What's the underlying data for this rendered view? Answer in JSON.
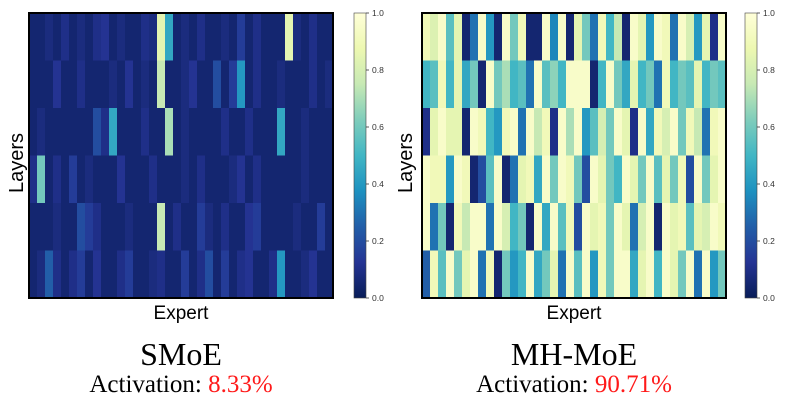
{
  "colorscale": {
    "name": "YlGnBu",
    "stops": [
      "#081d58",
      "#253494",
      "#225ea8",
      "#1d91c0",
      "#41b6c4",
      "#7fcdbb",
      "#c7e9b4",
      "#edf8b1",
      "#ffffd9"
    ]
  },
  "chart_data": [
    {
      "type": "heatmap",
      "title": "SMoE",
      "xlabel": "Expert",
      "ylabel": "Layers",
      "colorbar": {
        "range": [
          0.0,
          1.0
        ],
        "ticks": [
          "0.0",
          "0.2",
          "0.4",
          "0.6",
          "0.8",
          "1.0"
        ]
      },
      "summary": {
        "label": "Activation:",
        "value": "8.33%"
      },
      "values": [
        [
          0.05,
          0.05,
          0.08,
          0.05,
          0.1,
          0.05,
          0.08,
          0.05,
          0.1,
          0.12,
          0.05,
          0.08,
          0.05,
          0.05,
          0.1,
          0.08,
          0.85,
          0.45,
          0.05,
          0.08,
          0.05,
          0.1,
          0.05,
          0.05,
          0.08,
          0.05,
          0.15,
          0.05,
          0.1,
          0.05,
          0.05,
          0.05,
          0.85,
          0.08,
          0.05,
          0.1,
          0.05,
          0.05
        ],
        [
          0.05,
          0.05,
          0.05,
          0.12,
          0.05,
          0.05,
          0.1,
          0.05,
          0.05,
          0.05,
          0.08,
          0.05,
          0.12,
          0.05,
          0.08,
          0.05,
          0.75,
          0.05,
          0.05,
          0.08,
          0.12,
          0.05,
          0.05,
          0.2,
          0.05,
          0.15,
          0.4,
          0.05,
          0.1,
          0.05,
          0.05,
          0.08,
          0.05,
          0.05,
          0.05,
          0.1,
          0.05,
          0.08
        ],
        [
          0.05,
          0.08,
          0.05,
          0.05,
          0.05,
          0.05,
          0.05,
          0.05,
          0.2,
          0.1,
          0.45,
          0.05,
          0.05,
          0.05,
          0.1,
          0.05,
          0.05,
          0.7,
          0.05,
          0.08,
          0.05,
          0.05,
          0.05,
          0.05,
          0.1,
          0.05,
          0.05,
          0.1,
          0.05,
          0.05,
          0.05,
          0.45,
          0.05,
          0.05,
          0.08,
          0.05,
          0.05,
          0.05
        ],
        [
          0.1,
          0.6,
          0.05,
          0.1,
          0.05,
          0.15,
          0.05,
          0.08,
          0.05,
          0.05,
          0.05,
          0.12,
          0.05,
          0.05,
          0.05,
          0.1,
          0.05,
          0.05,
          0.05,
          0.08,
          0.05,
          0.1,
          0.05,
          0.05,
          0.05,
          0.08,
          0.12,
          0.05,
          0.1,
          0.05,
          0.05,
          0.05,
          0.05,
          0.05,
          0.08,
          0.05,
          0.05,
          0.05
        ],
        [
          0.05,
          0.05,
          0.05,
          0.08,
          0.05,
          0.05,
          0.2,
          0.15,
          0.1,
          0.05,
          0.05,
          0.05,
          0.08,
          0.05,
          0.05,
          0.05,
          0.75,
          0.05,
          0.1,
          0.05,
          0.05,
          0.15,
          0.08,
          0.05,
          0.1,
          0.05,
          0.05,
          0.12,
          0.15,
          0.05,
          0.05,
          0.05,
          0.05,
          0.08,
          0.05,
          0.05,
          0.15,
          0.05
        ],
        [
          0.05,
          0.08,
          0.25,
          0.1,
          0.05,
          0.1,
          0.15,
          0.05,
          0.12,
          0.05,
          0.05,
          0.1,
          0.15,
          0.05,
          0.05,
          0.08,
          0.1,
          0.05,
          0.05,
          0.15,
          0.05,
          0.1,
          0.2,
          0.05,
          0.15,
          0.05,
          0.1,
          0.12,
          0.05,
          0.05,
          0.1,
          0.4,
          0.05,
          0.05,
          0.08,
          0.12,
          0.05,
          0.05
        ]
      ]
    },
    {
      "type": "heatmap",
      "title": "MH-MoE",
      "xlabel": "Expert",
      "ylabel": "Layers",
      "colorbar": {
        "range": [
          0.0,
          1.0
        ],
        "ticks": [
          "0.0",
          "0.2",
          "0.4",
          "0.6",
          "0.8",
          "1.0"
        ]
      },
      "summary": {
        "label": "Activation:",
        "value": "90.71%"
      },
      "values": [
        [
          0.9,
          0.82,
          0.95,
          0.55,
          0.85,
          0.05,
          0.3,
          0.95,
          0.4,
          0.05,
          0.95,
          0.6,
          0.9,
          0.05,
          0.05,
          0.95,
          0.35,
          0.95,
          0.05,
          0.85,
          0.6,
          0.3,
          0.9,
          0.5,
          0.75,
          0.05,
          0.95,
          0.85,
          0.4,
          0.95,
          0.9,
          0.3,
          0.95,
          0.8,
          0.4,
          0.85,
          0.1,
          0.95
        ],
        [
          0.5,
          0.55,
          0.9,
          0.5,
          0.85,
          0.45,
          0.6,
          0.05,
          0.95,
          0.6,
          0.7,
          0.5,
          0.55,
          0.3,
          0.95,
          0.55,
          0.65,
          0.5,
          0.95,
          0.95,
          0.95,
          0.05,
          0.5,
          0.95,
          0.6,
          0.45,
          0.85,
          0.5,
          0.6,
          0.3,
          0.9,
          0.5,
          0.6,
          0.55,
          0.85,
          0.5,
          0.6,
          0.55
        ],
        [
          0.1,
          0.85,
          0.95,
          0.85,
          0.85,
          0.05,
          0.95,
          0.9,
          0.5,
          0.4,
          0.9,
          0.95,
          0.3,
          0.95,
          0.75,
          0.9,
          0.1,
          0.95,
          0.7,
          0.95,
          0.4,
          0.55,
          0.8,
          0.6,
          0.95,
          0.85,
          0.1,
          0.95,
          0.45,
          0.9,
          0.8,
          0.95,
          0.6,
          0.9,
          0.75,
          0.3,
          0.9,
          0.95
        ],
        [
          0.95,
          0.9,
          0.9,
          0.4,
          0.95,
          0.9,
          0.05,
          0.2,
          0.55,
          0.95,
          0.05,
          0.3,
          0.85,
          0.9,
          0.45,
          0.95,
          0.6,
          0.95,
          0.9,
          0.6,
          0.2,
          0.95,
          0.85,
          0.6,
          0.5,
          0.95,
          0.85,
          0.6,
          0.95,
          0.55,
          0.85,
          0.6,
          0.9,
          0.2,
          0.95,
          0.6,
          0.85,
          0.95
        ],
        [
          0.95,
          0.3,
          0.6,
          0.05,
          0.9,
          0.75,
          0.95,
          0.95,
          0.3,
          0.95,
          0.8,
          0.5,
          0.6,
          0.05,
          0.95,
          0.45,
          0.95,
          0.55,
          0.9,
          0.2,
          0.95,
          0.85,
          0.9,
          0.6,
          0.95,
          0.85,
          0.3,
          0.8,
          0.95,
          0.05,
          0.95,
          0.85,
          0.9,
          0.55,
          0.85,
          0.8,
          0.95,
          0.9
        ],
        [
          0.25,
          0.9,
          0.55,
          0.95,
          0.6,
          0.85,
          0.95,
          0.3,
          0.9,
          0.05,
          0.6,
          0.4,
          0.5,
          0.95,
          0.45,
          0.6,
          0.85,
          0.3,
          0.95,
          0.55,
          0.95,
          0.4,
          0.9,
          0.6,
          0.95,
          0.95,
          0.45,
          0.85,
          0.95,
          0.5,
          0.95,
          0.85,
          0.6,
          0.95,
          0.3,
          0.95,
          0.4,
          0.6
        ]
      ]
    }
  ]
}
